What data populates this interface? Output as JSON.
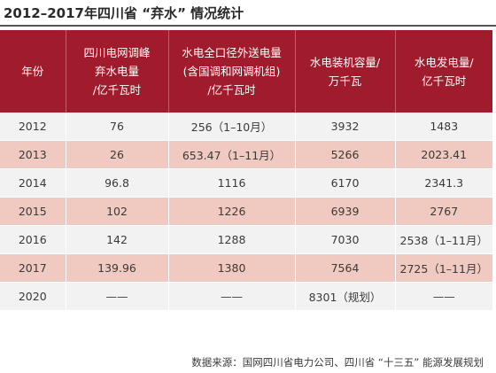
{
  "title": "2012–2017年四川省 “弃水” 情况统计",
  "headers": [
    [
      "年份"
    ],
    [
      "四川电网调峰",
      "弃水电量",
      "/亿千瓦时"
    ],
    [
      "水电全口径外送电量",
      "(含国调和网调机组)",
      "/亿千瓦时"
    ],
    [
      "水电装机容量/",
      "万千瓦"
    ],
    [
      "水电发电量/",
      "亿千瓦时"
    ]
  ],
  "rows": [
    [
      "2012",
      "76",
      "256（1–10月）",
      "3932",
      "1483"
    ],
    [
      "2013",
      "26",
      "653.47（1–11月）",
      "5266",
      "2023.41"
    ],
    [
      "2014",
      "96.8",
      "1116",
      "6170",
      "2341.3"
    ],
    [
      "2015",
      "102",
      "1226",
      "6939",
      "2767"
    ],
    [
      "2016",
      "142",
      "1288",
      "7030",
      "2538（1–11月）"
    ],
    [
      "2017",
      "139.96",
      "1380",
      "7564",
      "2725（1–11月）"
    ],
    [
      "2020",
      "——",
      "——",
      "8301（规划）",
      "——"
    ]
  ],
  "source": "数据来源：国网四川省电力公司、四川省 “十三五” 能源发展规划"
}
